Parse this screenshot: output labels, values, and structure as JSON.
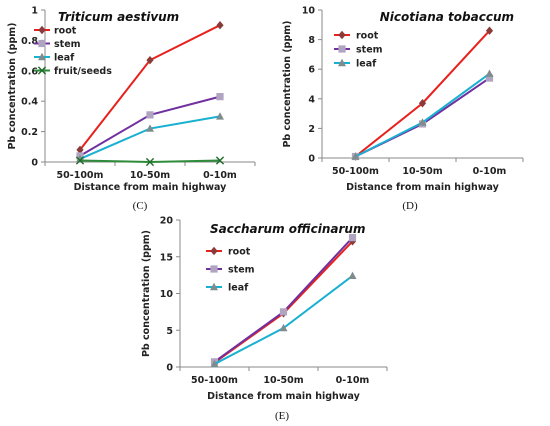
{
  "chart_data": [
    {
      "type": "line",
      "panel_label": "(C)",
      "title": "Triticum aestivum",
      "xlabel": "Distance from main highway",
      "ylabel": "Pb concentration (ppm)",
      "categories": [
        "50-100m",
        "10-50m",
        "0-10m"
      ],
      "ylim": [
        0,
        1
      ],
      "yticks": [
        "0",
        "0.2",
        "0.4",
        "0.6",
        "0.8",
        "1"
      ],
      "grid": false,
      "legend": "top-left",
      "series": [
        {
          "name": "root",
          "color": "#e8211d",
          "marker": "diamond",
          "marker_color": "#8b3a3a",
          "values": [
            0.08,
            0.67,
            0.9
          ]
        },
        {
          "name": "stem",
          "color": "#7030a0",
          "marker": "square",
          "marker_color": "#b0a4c0",
          "values": [
            0.04,
            0.31,
            0.43
          ]
        },
        {
          "name": "leaf",
          "color": "#19b0d2",
          "marker": "triangle",
          "marker_color": "#7f8c8d",
          "values": [
            0.02,
            0.22,
            0.3
          ]
        },
        {
          "name": "fruit/seeds",
          "color": "#2e8b3a",
          "marker": "x",
          "marker_color": "#1f6b2a",
          "values": [
            0.01,
            0.0,
            0.01
          ]
        }
      ]
    },
    {
      "type": "line",
      "panel_label": "(D)",
      "title": "Nicotiana tobaccum",
      "xlabel": "Distance from main highway",
      "ylabel": "Pb concentration (ppm)",
      "categories": [
        "50-100m",
        "10-50m",
        "0-10m"
      ],
      "ylim": [
        0,
        10
      ],
      "yticks": [
        "0",
        "2",
        "4",
        "6",
        "8",
        "10"
      ],
      "grid": false,
      "legend": "top-left",
      "series": [
        {
          "name": "root",
          "color": "#e8211d",
          "marker": "diamond",
          "marker_color": "#8b3a3a",
          "values": [
            0.1,
            3.7,
            8.6
          ]
        },
        {
          "name": "stem",
          "color": "#7030a0",
          "marker": "square",
          "marker_color": "#b0a4c0",
          "values": [
            0.1,
            2.3,
            5.4
          ]
        },
        {
          "name": "leaf",
          "color": "#19b0d2",
          "marker": "triangle",
          "marker_color": "#7f8c8d",
          "values": [
            0.1,
            2.4,
            5.7
          ]
        }
      ]
    },
    {
      "type": "line",
      "panel_label": "(E)",
      "title": "Saccharum officinarum",
      "xlabel": "Distance from main highway",
      "ylabel": "Pb concentration (ppm)",
      "categories": [
        "50-100m",
        "10-50m",
        "0-10m"
      ],
      "ylim": [
        0,
        20
      ],
      "yticks": [
        "0",
        "5",
        "10",
        "15",
        "20"
      ],
      "grid": false,
      "legend": "top-left",
      "series": [
        {
          "name": "root",
          "color": "#e8211d",
          "marker": "diamond",
          "marker_color": "#8b3a3a",
          "values": [
            0.6,
            7.3,
            17.1
          ]
        },
        {
          "name": "stem",
          "color": "#7030a0",
          "marker": "square",
          "marker_color": "#b0a4c0",
          "values": [
            0.7,
            7.5,
            17.6
          ]
        },
        {
          "name": "leaf",
          "color": "#19b0d2",
          "marker": "triangle",
          "marker_color": "#7f8c8d",
          "values": [
            0.4,
            5.3,
            12.4
          ]
        }
      ]
    }
  ]
}
